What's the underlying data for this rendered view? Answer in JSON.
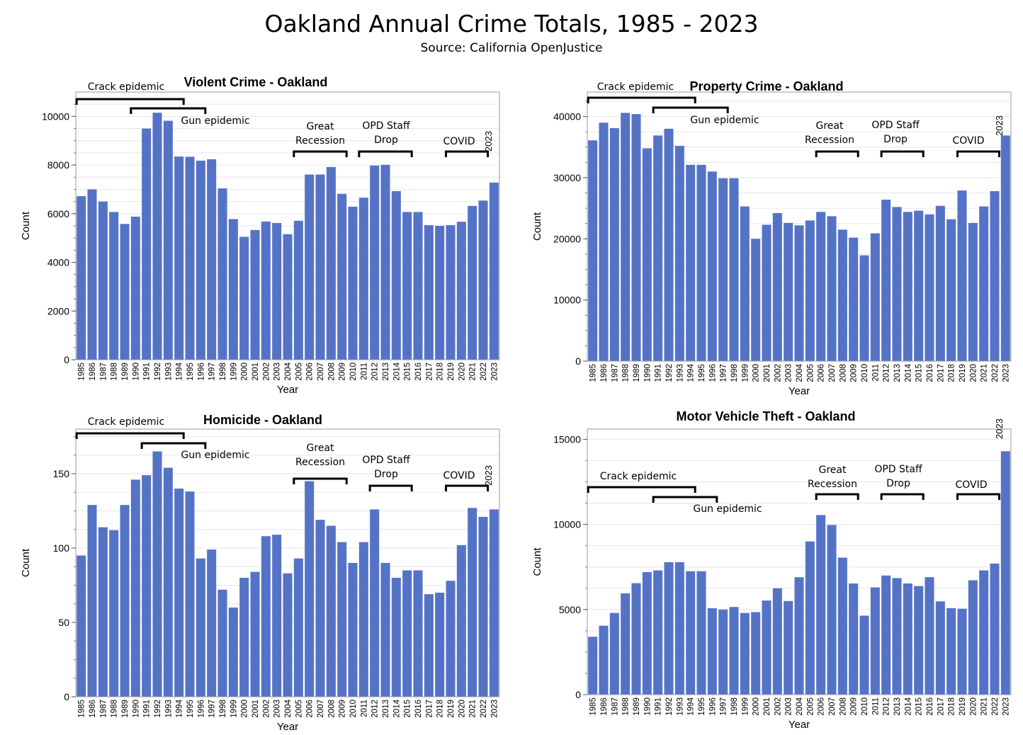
{
  "title": "Oakland Annual Crime Totals, 1985 - 2023",
  "subtitle": "Source: California OpenJustice",
  "colors": {
    "bar": "#5573c6",
    "grid": "#e6e6e6",
    "frame": "#9a9a9a"
  },
  "chart_data": [
    {
      "type": "bar",
      "title": "Violent Crime - Oakland",
      "xlabel": "Year",
      "ylabel": "Count",
      "ylim": [
        0,
        11000
      ],
      "yticks": [
        0,
        2000,
        4000,
        6000,
        8000,
        10000
      ],
      "grid": true,
      "categories": [
        "1985",
        "1986",
        "1987",
        "1988",
        "1989",
        "1990",
        "1991",
        "1992",
        "1993",
        "1994",
        "1995",
        "1996",
        "1997",
        "1998",
        "1999",
        "2000",
        "2001",
        "2002",
        "2003",
        "2004",
        "2005",
        "2006",
        "2007",
        "2008",
        "2009",
        "2010",
        "2011",
        "2012",
        "2013",
        "2014",
        "2015",
        "2016",
        "2017",
        "2018",
        "2019",
        "2020",
        "2021",
        "2022",
        "2023"
      ],
      "values": [
        6720,
        7000,
        6500,
        6070,
        5580,
        5880,
        9500,
        10150,
        9820,
        8350,
        8340,
        8180,
        8240,
        7040,
        5780,
        5050,
        5330,
        5680,
        5620,
        5160,
        5710,
        7610,
        7610,
        7920,
        6820,
        6290,
        6660,
        7980,
        8010,
        6930,
        6070,
        6070,
        5530,
        5500,
        5530,
        5670,
        6320,
        6540,
        7280
      ],
      "annotations": [
        {
          "text": "Crack epidemic",
          "from": "1985",
          "to": "1994"
        },
        {
          "text": "Gun epidemic",
          "from": "1990",
          "to": "1996"
        },
        {
          "text": "Great Recession",
          "from": "2005",
          "to": "2009"
        },
        {
          "text": "OPD Staff Drop",
          "from": "2011",
          "to": "2015"
        },
        {
          "text": "COVID",
          "from": "2019",
          "to": "2022"
        },
        {
          "text": "2023",
          "at": "2023"
        }
      ]
    },
    {
      "type": "bar",
      "title": "Property Crime - Oakland",
      "xlabel": "Year",
      "ylabel": "Count",
      "ylim": [
        0,
        44000
      ],
      "yticks": [
        0,
        10000,
        20000,
        30000,
        40000
      ],
      "grid": true,
      "categories": [
        "1985",
        "1986",
        "1987",
        "1988",
        "1989",
        "1990",
        "1991",
        "1992",
        "1993",
        "1994",
        "1995",
        "1996",
        "1997",
        "1998",
        "1999",
        "2000",
        "2001",
        "2002",
        "2003",
        "2004",
        "2005",
        "2006",
        "2007",
        "2008",
        "2009",
        "2010",
        "2011",
        "2012",
        "2013",
        "2014",
        "2015",
        "2016",
        "2017",
        "2018",
        "2019",
        "2020",
        "2021",
        "2022",
        "2023"
      ],
      "values": [
        36100,
        39000,
        38100,
        40600,
        40400,
        34800,
        36900,
        38000,
        35200,
        32100,
        32100,
        31000,
        29900,
        29900,
        25300,
        20000,
        22300,
        24200,
        22600,
        22200,
        23000,
        24400,
        23700,
        21500,
        20200,
        17300,
        20900,
        26400,
        25200,
        24400,
        24600,
        24000,
        25400,
        23200,
        27900,
        22600,
        25300,
        27800,
        36900
      ],
      "annotations": [
        {
          "text": "Crack epidemic",
          "from": "1985",
          "to": "1994"
        },
        {
          "text": "Gun epidemic",
          "from": "1991",
          "to": "1997"
        },
        {
          "text": "Great Recession",
          "from": "2006",
          "to": "2009"
        },
        {
          "text": "OPD Staff Drop",
          "from": "2012",
          "to": "2015"
        },
        {
          "text": "COVID",
          "from": "2019",
          "to": "2022"
        },
        {
          "text": "2023",
          "at": "2023"
        }
      ]
    },
    {
      "type": "bar",
      "title": "Homicide - Oakland",
      "xlabel": "Year",
      "ylabel": "Count",
      "ylim": [
        0,
        180
      ],
      "yticks": [
        0,
        50,
        100,
        150
      ],
      "grid": true,
      "categories": [
        "1985",
        "1986",
        "1987",
        "1988",
        "1989",
        "1990",
        "1991",
        "1992",
        "1993",
        "1994",
        "1995",
        "1996",
        "1997",
        "1998",
        "1999",
        "2000",
        "2001",
        "2002",
        "2003",
        "2004",
        "2005",
        "2006",
        "2007",
        "2008",
        "2009",
        "2010",
        "2011",
        "2012",
        "2013",
        "2014",
        "2015",
        "2016",
        "2017",
        "2018",
        "2019",
        "2020",
        "2021",
        "2022",
        "2023"
      ],
      "values": [
        95,
        129,
        114,
        112,
        129,
        146,
        149,
        165,
        154,
        140,
        138,
        93,
        99,
        72,
        60,
        80,
        84,
        108,
        109,
        83,
        93,
        145,
        119,
        115,
        104,
        90,
        104,
        126,
        90,
        80,
        85,
        85,
        69,
        70,
        78,
        102,
        127,
        121,
        126
      ],
      "annotations": [
        {
          "text": "Crack epidemic",
          "from": "1985",
          "to": "1994"
        },
        {
          "text": "Gun epidemic",
          "from": "1991",
          "to": "1996"
        },
        {
          "text": "Great Recession",
          "from": "2005",
          "to": "2009"
        },
        {
          "text": "OPD Staff Drop",
          "from": "2012",
          "to": "2015"
        },
        {
          "text": "COVID",
          "from": "2019",
          "to": "2022"
        },
        {
          "text": "2023",
          "at": "2023"
        }
      ]
    },
    {
      "type": "bar",
      "title": "Motor Vehicle Theft - Oakland",
      "xlabel": "Year",
      "ylabel": "Count",
      "ylim": [
        0,
        15600
      ],
      "yticks": [
        0,
        5000,
        10000,
        15000
      ],
      "grid": true,
      "categories": [
        "1985",
        "1986",
        "1987",
        "1988",
        "1989",
        "1990",
        "1991",
        "1992",
        "1993",
        "1994",
        "1995",
        "1996",
        "1997",
        "1998",
        "1999",
        "2000",
        "2001",
        "2002",
        "2003",
        "2004",
        "2005",
        "2006",
        "2007",
        "2008",
        "2009",
        "2010",
        "2011",
        "2012",
        "2013",
        "2014",
        "2015",
        "2016",
        "2017",
        "2018",
        "2019",
        "2020",
        "2021",
        "2022",
        "2023"
      ],
      "values": [
        3400,
        4050,
        4800,
        5950,
        6550,
        7200,
        7300,
        7780,
        7780,
        7250,
        7250,
        5080,
        5000,
        5150,
        4800,
        4850,
        5530,
        6250,
        5500,
        6900,
        9000,
        10550,
        9970,
        8050,
        6530,
        4640,
        6300,
        7000,
        6850,
        6530,
        6380,
        6900,
        5480,
        5080,
        5050,
        6720,
        7300,
        7700,
        14300
      ],
      "annotations": [
        {
          "text": "Crack epidemic",
          "from": "1985",
          "to": "1994"
        },
        {
          "text": "Gun epidemic",
          "from": "1991",
          "to": "1996"
        },
        {
          "text": "Great Recession",
          "from": "2006",
          "to": "2009"
        },
        {
          "text": "OPD Staff Drop",
          "from": "2012",
          "to": "2015"
        },
        {
          "text": "COVID",
          "from": "2019",
          "to": "2022"
        },
        {
          "text": "2023",
          "at": "2023"
        }
      ]
    }
  ]
}
